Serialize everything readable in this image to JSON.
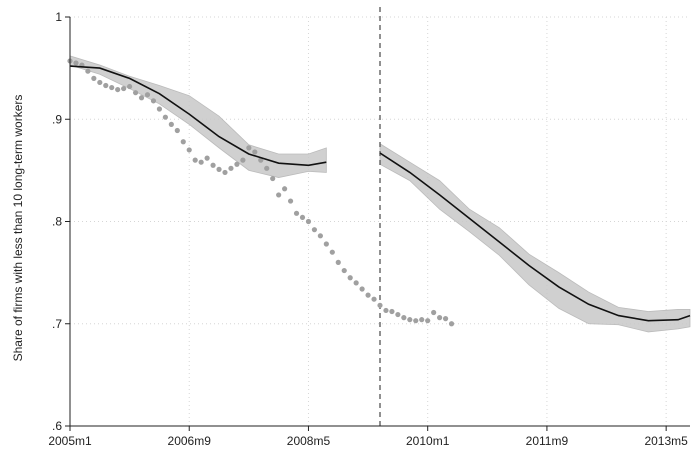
{
  "chart_data": {
    "type": "scatter",
    "title": "",
    "xlabel": "",
    "ylabel": "Share of firms with less than 10 long-term workers",
    "xlim": [
      0,
      104
    ],
    "ylim": [
      0.6,
      1.0
    ],
    "grid": true,
    "x_ticks": [
      {
        "x": 0,
        "label": "2005m1"
      },
      {
        "x": 20,
        "label": "2006m9"
      },
      {
        "x": 40,
        "label": "2008m5"
      },
      {
        "x": 60,
        "label": "2010m1"
      },
      {
        "x": 80,
        "label": "2011m9"
      },
      {
        "x": 100,
        "label": "2013m5"
      }
    ],
    "y_ticks": [
      {
        "y": 0.6,
        "label": ".6"
      },
      {
        "y": 0.7,
        "label": ".7"
      },
      {
        "y": 0.8,
        "label": ".8"
      },
      {
        "y": 0.9,
        "label": ".9"
      },
      {
        "y": 1.0,
        "label": "1"
      }
    ],
    "cutoff_x": 52,
    "series": [
      {
        "kind": "binned_means",
        "color": "#a0a0a0",
        "points": [
          [
            0,
            0.957
          ],
          [
            1,
            0.955
          ],
          [
            2,
            0.953
          ],
          [
            3,
            0.947
          ],
          [
            4,
            0.94
          ],
          [
            5,
            0.936
          ],
          [
            6,
            0.933
          ],
          [
            7,
            0.931
          ],
          [
            8,
            0.929
          ],
          [
            9,
            0.93
          ],
          [
            10,
            0.932
          ],
          [
            11,
            0.926
          ],
          [
            12,
            0.921
          ],
          [
            13,
            0.924
          ],
          [
            14,
            0.918
          ],
          [
            15,
            0.91
          ],
          [
            16,
            0.902
          ],
          [
            17,
            0.895
          ],
          [
            18,
            0.889
          ],
          [
            19,
            0.878
          ],
          [
            20,
            0.87
          ],
          [
            21,
            0.86
          ],
          [
            22,
            0.858
          ],
          [
            23,
            0.862
          ],
          [
            24,
            0.855
          ],
          [
            25,
            0.851
          ],
          [
            26,
            0.848
          ],
          [
            27,
            0.852
          ],
          [
            28,
            0.856
          ],
          [
            29,
            0.86
          ],
          [
            30,
            0.872
          ],
          [
            31,
            0.868
          ],
          [
            32,
            0.86
          ],
          [
            33,
            0.852
          ],
          [
            34,
            0.842
          ],
          [
            35,
            0.826
          ],
          [
            36,
            0.832
          ],
          [
            37,
            0.82
          ],
          [
            38,
            0.808
          ],
          [
            39,
            0.804
          ],
          [
            40,
            0.8
          ],
          [
            41,
            0.792
          ],
          [
            42,
            0.786
          ],
          [
            43,
            0.778
          ],
          [
            44,
            0.77
          ],
          [
            45,
            0.76
          ],
          [
            46,
            0.752
          ],
          [
            47,
            0.745
          ],
          [
            48,
            0.74
          ],
          [
            49,
            0.734
          ],
          [
            50,
            0.728
          ],
          [
            51,
            0.724
          ],
          [
            52,
            0.718
          ],
          [
            53,
            0.713
          ],
          [
            54,
            0.712
          ],
          [
            55,
            0.709
          ],
          [
            56,
            0.706
          ],
          [
            57,
            0.704
          ],
          [
            58,
            0.703
          ],
          [
            59,
            0.704
          ],
          [
            60,
            0.703
          ],
          [
            61,
            0.711
          ],
          [
            62,
            0.706
          ],
          [
            63,
            0.705
          ],
          [
            64,
            0.7
          ]
        ]
      },
      {
        "kind": "fitted_pre",
        "color": "#111111",
        "points": [
          [
            0,
            0.952
          ],
          [
            5,
            0.95
          ],
          [
            10,
            0.94
          ],
          [
            15,
            0.925
          ],
          [
            20,
            0.905
          ],
          [
            25,
            0.883
          ],
          [
            30,
            0.866
          ],
          [
            35,
            0.857
          ],
          [
            40,
            0.855
          ],
          [
            43,
            0.858
          ]
        ]
      },
      {
        "kind": "fitted_post",
        "color": "#111111",
        "points": [
          [
            52,
            0.867
          ],
          [
            57,
            0.848
          ],
          [
            62,
            0.826
          ],
          [
            67,
            0.803
          ],
          [
            72,
            0.78
          ],
          [
            77,
            0.757
          ],
          [
            82,
            0.736
          ],
          [
            87,
            0.719
          ],
          [
            92,
            0.708
          ],
          [
            97,
            0.703
          ],
          [
            102,
            0.704
          ],
          [
            104,
            0.708
          ]
        ]
      },
      {
        "kind": "ci_band",
        "color": "#c8c8c8",
        "lower": [
          [
            0,
            0.953
          ],
          [
            5,
            0.944
          ],
          [
            10,
            0.93
          ],
          [
            15,
            0.915
          ],
          [
            20,
            0.895
          ],
          [
            25,
            0.872
          ],
          [
            30,
            0.85
          ],
          [
            35,
            0.843
          ],
          [
            40,
            0.849
          ],
          [
            43,
            0.848
          ]
        ],
        "upper": [
          [
            0,
            0.962
          ],
          [
            5,
            0.953
          ],
          [
            10,
            0.942
          ],
          [
            15,
            0.933
          ],
          [
            20,
            0.923
          ],
          [
            25,
            0.903
          ],
          [
            30,
            0.875
          ],
          [
            35,
            0.866
          ],
          [
            40,
            0.866
          ],
          [
            43,
            0.872
          ]
        ]
      },
      {
        "kind": "ci_band",
        "color": "#c8c8c8",
        "lower": [
          [
            52,
            0.856
          ],
          [
            57,
            0.84
          ],
          [
            62,
            0.812
          ],
          [
            67,
            0.79
          ],
          [
            72,
            0.767
          ],
          [
            77,
            0.738
          ],
          [
            82,
            0.715
          ],
          [
            87,
            0.7
          ],
          [
            92,
            0.699
          ],
          [
            97,
            0.692
          ],
          [
            102,
            0.695
          ],
          [
            104,
            0.697
          ]
        ],
        "upper": [
          [
            52,
            0.876
          ],
          [
            57,
            0.858
          ],
          [
            62,
            0.84
          ],
          [
            67,
            0.812
          ],
          [
            72,
            0.794
          ],
          [
            77,
            0.768
          ],
          [
            82,
            0.75
          ],
          [
            87,
            0.731
          ],
          [
            92,
            0.716
          ],
          [
            97,
            0.712
          ],
          [
            102,
            0.714
          ],
          [
            104,
            0.714
          ]
        ]
      }
    ]
  }
}
